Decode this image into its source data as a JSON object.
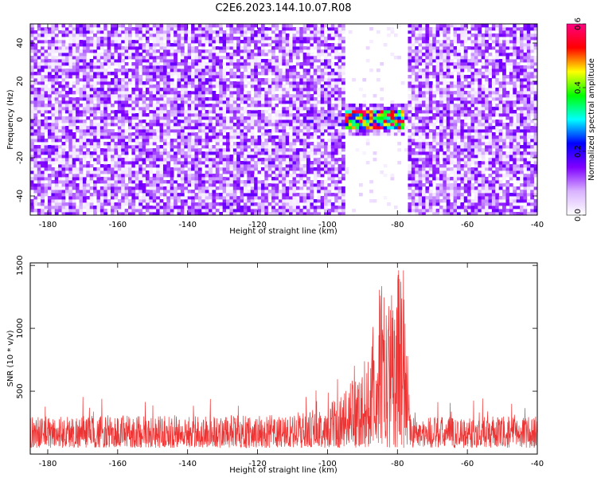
{
  "title": "C2E6.2023.144.10.07.R08",
  "chart_data": [
    {
      "type": "heatmap",
      "xlabel": "Height of straight line (km)",
      "ylabel": "Frequency (Hz)",
      "xlim": [
        -185,
        -40
      ],
      "ylim": [
        -50,
        50
      ],
      "x_ticks": [
        -180,
        -160,
        -140,
        -120,
        -100,
        -80,
        -60,
        -40
      ],
      "y_ticks": [
        -40,
        -20,
        0,
        20,
        40
      ],
      "colorbar": {
        "label": "Normalized spectral amplitude",
        "range": [
          0,
          0.6
        ],
        "ticks": [
          "0.0",
          "0.2",
          "0.4",
          "0.6"
        ],
        "colors": [
          "#ffffff",
          "#d9b3ff",
          "#8000ff",
          "#0000ff",
          "#00ffff",
          "#00ff00",
          "#ffff00",
          "#ff0000",
          "#ff0080"
        ]
      },
      "signal": {
        "x_range": [
          -95,
          -78
        ],
        "frequency_center": 0,
        "frequency_halfwidth": 5,
        "peak_value": 0.6,
        "gap_x_range": [
          -95,
          -77
        ],
        "gap_frequency_halfwidth": 8
      },
      "background_level": 0.12
    },
    {
      "type": "line",
      "xlabel": "Height of straight line (km)",
      "ylabel": "SNR (10 * v/v)",
      "xlim": [
        -185,
        -40
      ],
      "ylim": [
        0,
        1520
      ],
      "x_ticks": [
        -180,
        -160,
        -140,
        -120,
        -100,
        -80,
        -60,
        -40
      ],
      "y_ticks": [
        500,
        1000,
        1500
      ],
      "series": [
        {
          "color": "#ee3333",
          "baseline_range": [
            50,
            300
          ],
          "envelope": [
            {
              "x": -185,
              "max": 310
            },
            {
              "x": -110,
              "max": 310
            },
            {
              "x": -100,
              "max": 380
            },
            {
              "x": -95,
              "max": 520
            },
            {
              "x": -90,
              "max": 700
            },
            {
              "x": -87,
              "max": 900
            },
            {
              "x": -85,
              "max": 1400
            },
            {
              "x": -83,
              "max": 1200
            },
            {
              "x": -80,
              "max": 1500
            },
            {
              "x": -78,
              "max": 1500
            },
            {
              "x": -77,
              "max": 800
            },
            {
              "x": -76,
              "max": 300
            },
            {
              "x": -40,
              "max": 300
            }
          ]
        }
      ]
    }
  ]
}
